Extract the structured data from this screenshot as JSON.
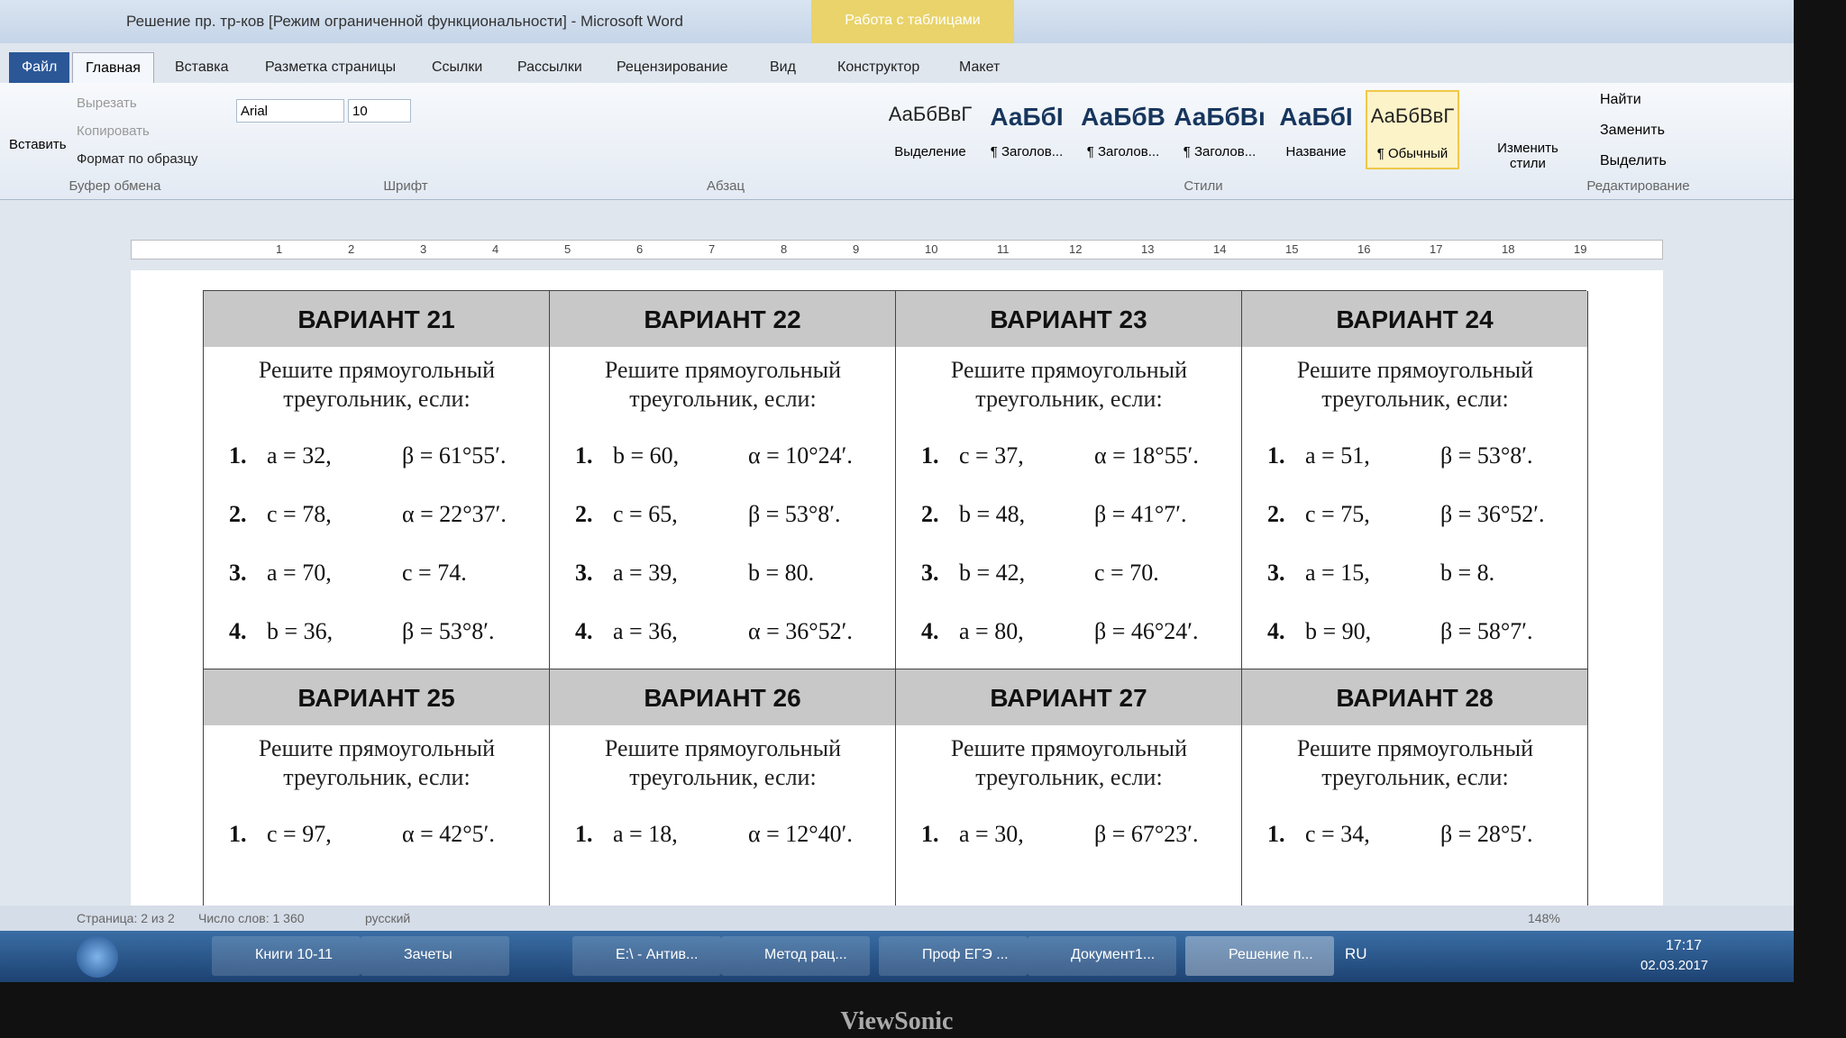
{
  "window": {
    "title": "Решение пр. тр-ков [Режим ограниченной функциональности] - Microsoft Word",
    "contextual_tab": "Работа с таблицами",
    "tabs": [
      "Файл",
      "Главная",
      "Вставка",
      "Разметка страницы",
      "Ссылки",
      "Рассылки",
      "Рецензирование",
      "Вид",
      "Конструктор",
      "Макет"
    ]
  },
  "ribbon": {
    "clipboard": {
      "paste": "Вставить",
      "items": [
        "Вырезать",
        "Копировать",
        "Формат по образцу"
      ],
      "label": "Буфер обмена"
    },
    "font": {
      "name": "Arial",
      "size": "10",
      "label": "Шрифт"
    },
    "paragraph": {
      "label": "Абзац"
    },
    "styles": {
      "items": [
        {
          "sample": "АаБбВвГ",
          "name": "Выделение"
        },
        {
          "sample": "АаБбI",
          "name": "¶ Заголов..."
        },
        {
          "sample": "АаБбВ",
          "name": "¶ Заголов..."
        },
        {
          "sample": "АаБбВı",
          "name": "¶ Заголов..."
        },
        {
          "sample": "АаБбI",
          "name": "Название"
        },
        {
          "sample": "АаБбВвГ",
          "name": "¶ Обычный"
        }
      ],
      "change": "Изменить стили",
      "label": "Стили"
    },
    "editing": {
      "items": [
        "Найти",
        "Заменить",
        "Выделить"
      ],
      "label": "Редактирование"
    }
  },
  "ruler": [
    "1",
    "2",
    "3",
    "4",
    "5",
    "6",
    "7",
    "8",
    "9",
    "10",
    "11",
    "12",
    "13",
    "14",
    "15",
    "16",
    "17",
    "18",
    "19"
  ],
  "table": {
    "variants": [
      {
        "title": "ВАРИАНТ 21",
        "prompt": "Решите прямоугольный треугольник, если:",
        "problems": [
          [
            "1.",
            "a = 32,",
            "β = 61°55′."
          ],
          [
            "2.",
            "c = 78,",
            "α = 22°37′."
          ],
          [
            "3.",
            "a = 70,",
            "c = 74."
          ],
          [
            "4.",
            "b = 36,",
            "β = 53°8′."
          ]
        ]
      },
      {
        "title": "ВАРИАНТ 22",
        "prompt": "Решите прямоугольный треугольник, если:",
        "problems": [
          [
            "1.",
            "b = 60,",
            "α = 10°24′."
          ],
          [
            "2.",
            "c = 65,",
            "β = 53°8′."
          ],
          [
            "3.",
            "a = 39,",
            "b = 80."
          ],
          [
            "4.",
            "a = 36,",
            "α = 36°52′."
          ]
        ]
      },
      {
        "title": "ВАРИАНТ 23",
        "prompt": "Решите прямоугольный треугольник, если:",
        "problems": [
          [
            "1.",
            "c = 37,",
            "α = 18°55′."
          ],
          [
            "2.",
            "b = 48,",
            "β = 41°7′."
          ],
          [
            "3.",
            "b = 42,",
            "c = 70."
          ],
          [
            "4.",
            "a = 80,",
            "β = 46°24′."
          ]
        ]
      },
      {
        "title": "ВАРИАНТ 24",
        "prompt": "Решите прямоугольный треугольник, если:",
        "problems": [
          [
            "1.",
            "a = 51,",
            "β = 53°8′."
          ],
          [
            "2.",
            "c = 75,",
            "β = 36°52′."
          ],
          [
            "3.",
            "a = 15,",
            "b = 8."
          ],
          [
            "4.",
            "b = 90,",
            "β = 58°7′."
          ]
        ]
      },
      {
        "title": "ВАРИАНТ 25",
        "prompt": "Решите прямоугольный треугольник, если:",
        "problems": [
          [
            "1.",
            "c = 97,",
            "α = 42°5′."
          ]
        ]
      },
      {
        "title": "ВАРИАНТ 26",
        "prompt": "Решите прямоугольный треугольник, если:",
        "problems": [
          [
            "1.",
            "a = 18,",
            "α = 12°40′."
          ]
        ]
      },
      {
        "title": "ВАРИАНТ 27",
        "prompt": "Решите прямоугольный треугольник, если:",
        "problems": [
          [
            "1.",
            "a = 30,",
            "β = 67°23′."
          ]
        ]
      },
      {
        "title": "ВАРИАНТ 28",
        "prompt": "Решите прямоугольный треугольник, если:",
        "problems": [
          [
            "1.",
            "c = 34,",
            "β = 28°5′."
          ]
        ]
      }
    ]
  },
  "status_bar": {
    "page": "Страница: 2 из 2",
    "words": "Число слов: 1 360",
    "language": "русский",
    "zoom": "148%"
  },
  "taskbar": {
    "items": [
      "Книги 10-11",
      "Зачеты",
      "E:\\ - Антив...",
      "Метод рац...",
      "Проф ЕГЭ ...",
      "Документ1...",
      "Решение п..."
    ],
    "lang": "RU",
    "time": "17:17",
    "date": "02.03.2017"
  },
  "monitor": {
    "brand": "ViewSonic"
  }
}
